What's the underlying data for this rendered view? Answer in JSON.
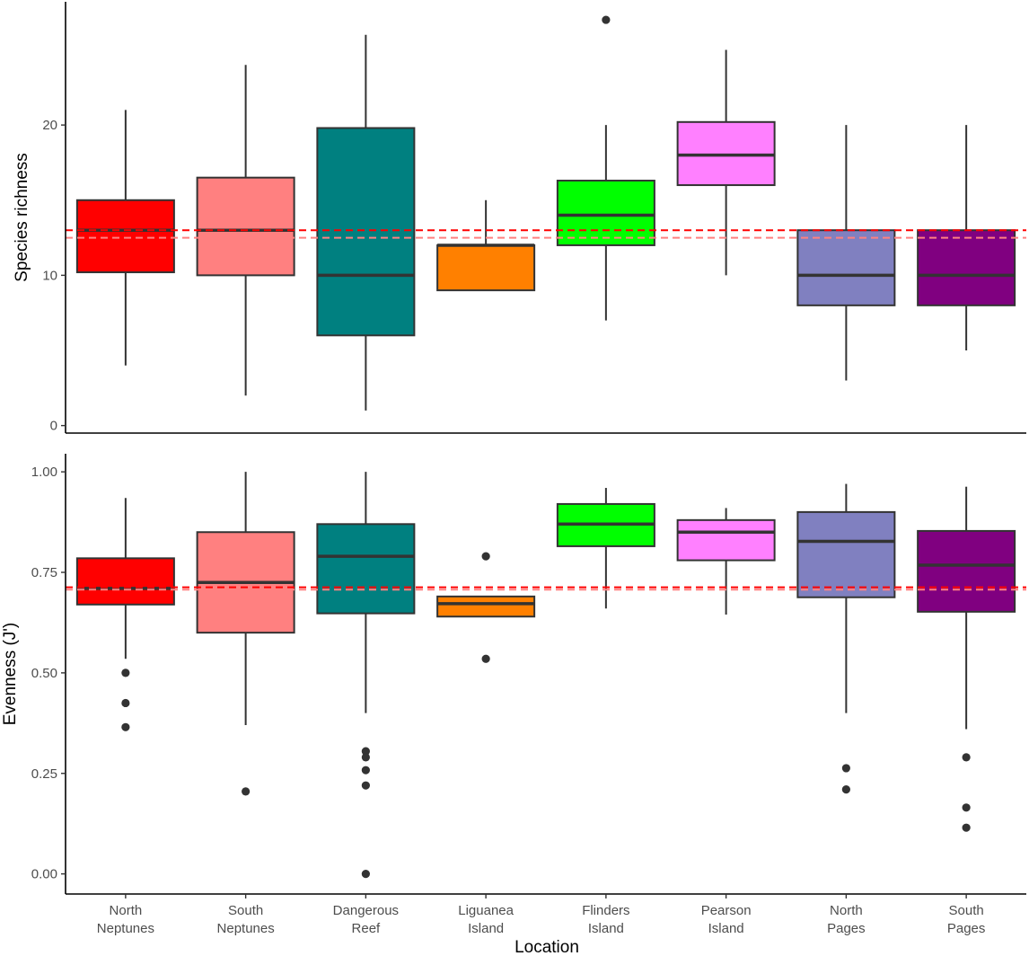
{
  "chart_data": {
    "type": "box",
    "xlabel": "Location",
    "categories": [
      [
        "North",
        "Neptunes"
      ],
      [
        "South",
        "Neptunes"
      ],
      [
        "Dangerous",
        "Reef"
      ],
      [
        "Liguanea",
        "Island"
      ],
      [
        "Flinders",
        "Island"
      ],
      [
        "Pearson",
        "Island"
      ],
      [
        "North",
        "Pages"
      ],
      [
        "South",
        "Pages"
      ]
    ],
    "colors": [
      "#FF0000",
      "#FF8080",
      "#008080",
      "#FF8000",
      "#00FF00",
      "#FF80FF",
      "#8080C0",
      "#800080"
    ],
    "box_stroke": "#333333",
    "reference_line_colors": [
      "#FF0000",
      "#FF8080"
    ],
    "panels": [
      {
        "ylabel": "Species richness",
        "ylim": [
          -0.5,
          28.2
        ],
        "yticks": [
          0,
          10,
          20
        ],
        "ytick_labels": [
          "0",
          "10",
          "20"
        ],
        "reference_lines": [
          13,
          12.5
        ],
        "boxes": [
          {
            "whisker_low": 4,
            "q1": 10.2,
            "median": 13,
            "q3": 15,
            "whisker_high": 21,
            "outliers": []
          },
          {
            "whisker_low": 2,
            "q1": 10,
            "median": 13,
            "q3": 16.5,
            "whisker_high": 24,
            "outliers": []
          },
          {
            "whisker_low": 1,
            "q1": 6,
            "median": 10,
            "q3": 19.8,
            "whisker_high": 26,
            "outliers": []
          },
          {
            "whisker_low": 9,
            "q1": 9,
            "median": 12,
            "q3": 12,
            "whisker_high": 15,
            "outliers": []
          },
          {
            "whisker_low": 7,
            "q1": 12,
            "median": 14,
            "q3": 16.3,
            "whisker_high": 20,
            "outliers": [
              27
            ]
          },
          {
            "whisker_low": 10,
            "q1": 16,
            "median": 18,
            "q3": 20.2,
            "whisker_high": 25,
            "outliers": []
          },
          {
            "whisker_low": 3,
            "q1": 8,
            "median": 10,
            "q3": 13,
            "whisker_high": 20,
            "outliers": []
          },
          {
            "whisker_low": 5,
            "q1": 8,
            "median": 10,
            "q3": 13,
            "whisker_high": 20,
            "outliers": []
          }
        ]
      },
      {
        "ylabel": "Evenness (J')",
        "ylim": [
          -0.05,
          1.045
        ],
        "yticks": [
          0,
          0.25,
          0.5,
          0.75,
          1
        ],
        "ytick_labels": [
          "0.00",
          "0.25",
          "0.50",
          "0.75",
          "1.00"
        ],
        "reference_lines": [
          0.713,
          0.707
        ],
        "boxes": [
          {
            "whisker_low": 0.535,
            "q1": 0.67,
            "median": 0.71,
            "q3": 0.785,
            "whisker_high": 0.935,
            "outliers": [
              0.5,
              0.425,
              0.365
            ]
          },
          {
            "whisker_low": 0.37,
            "q1": 0.6,
            "median": 0.725,
            "q3": 0.85,
            "whisker_high": 1.0,
            "outliers": [
              0.205
            ]
          },
          {
            "whisker_low": 0.4,
            "q1": 0.648,
            "median": 0.79,
            "q3": 0.87,
            "whisker_high": 1.0,
            "outliers": [
              0.305,
              0.29,
              0.258,
              0.22,
              0.0
            ]
          },
          {
            "whisker_low": 0.64,
            "q1": 0.64,
            "median": 0.672,
            "q3": 0.69,
            "whisker_high": 0.69,
            "outliers": [
              0.79,
              0.535
            ]
          },
          {
            "whisker_low": 0.66,
            "q1": 0.815,
            "median": 0.87,
            "q3": 0.92,
            "whisker_high": 0.96,
            "outliers": []
          },
          {
            "whisker_low": 0.645,
            "q1": 0.78,
            "median": 0.85,
            "q3": 0.88,
            "whisker_high": 0.91,
            "outliers": []
          },
          {
            "whisker_low": 0.4,
            "q1": 0.688,
            "median": 0.827,
            "q3": 0.9,
            "whisker_high": 0.97,
            "outliers": [
              0.263,
              0.21
            ]
          },
          {
            "whisker_low": 0.36,
            "q1": 0.652,
            "median": 0.768,
            "q3": 0.853,
            "whisker_high": 0.963,
            "outliers": [
              0.29,
              0.165,
              0.115
            ]
          }
        ]
      }
    ]
  }
}
